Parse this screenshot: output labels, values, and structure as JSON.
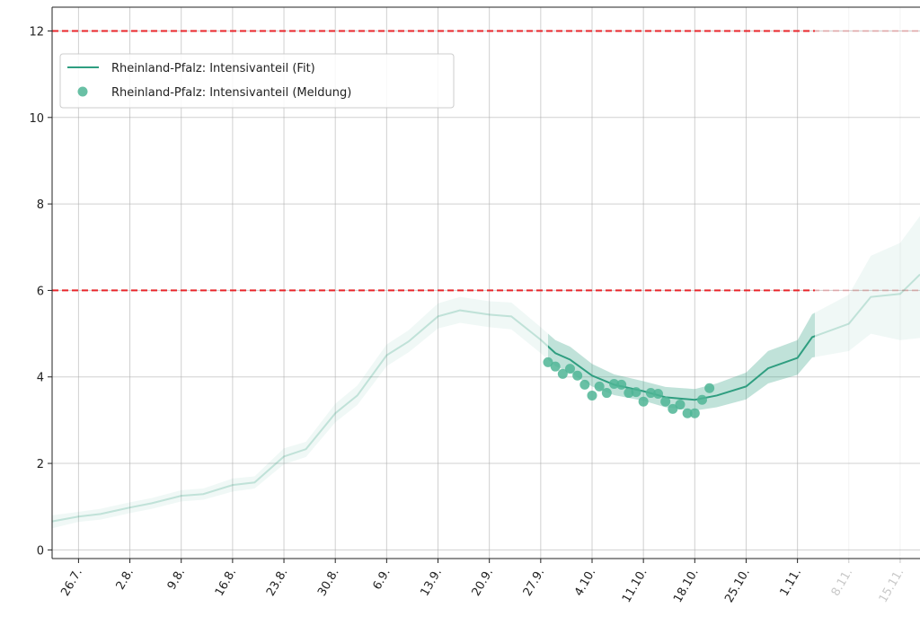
{
  "chart_data": {
    "type": "line",
    "x": [
      -3.6,
      0,
      3,
      7,
      10,
      14,
      17,
      21,
      24,
      28,
      31,
      35,
      38,
      42,
      45,
      49,
      52,
      56,
      59,
      63,
      65,
      67,
      70,
      73,
      77,
      80,
      84,
      87,
      91,
      94,
      98,
      100,
      105,
      108,
      112,
      114.7
    ],
    "series": [
      {
        "name": "Rheinland-Pfalz: Intensivanteil (Fit)",
        "color": "#2f9e80",
        "values": [
          0.66,
          0.77,
          0.83,
          0.98,
          1.08,
          1.25,
          1.29,
          1.5,
          1.56,
          2.16,
          2.33,
          3.16,
          3.57,
          4.5,
          4.82,
          5.4,
          5.54,
          5.44,
          5.4,
          4.86,
          4.55,
          4.4,
          4.03,
          3.82,
          3.67,
          3.53,
          3.47,
          3.57,
          3.78,
          4.2,
          4.44,
          4.92,
          5.23,
          5.85,
          5.92,
          6.37
        ],
        "lower": [
          0.5,
          0.65,
          0.7,
          0.85,
          0.95,
          1.12,
          1.16,
          1.35,
          1.42,
          1.98,
          2.15,
          2.95,
          3.35,
          4.25,
          4.57,
          5.12,
          5.25,
          5.15,
          5.1,
          4.55,
          4.25,
          4.1,
          3.78,
          3.58,
          3.45,
          3.3,
          3.22,
          3.3,
          3.48,
          3.85,
          4.05,
          4.45,
          4.6,
          5.0,
          4.85,
          4.9
        ],
        "upper": [
          0.8,
          0.88,
          0.95,
          1.1,
          1.2,
          1.38,
          1.42,
          1.65,
          1.7,
          2.35,
          2.5,
          3.38,
          3.8,
          4.75,
          5.08,
          5.7,
          5.85,
          5.75,
          5.72,
          5.15,
          4.85,
          4.7,
          4.3,
          4.06,
          3.9,
          3.77,
          3.72,
          3.85,
          4.1,
          4.6,
          4.85,
          5.45,
          5.9,
          6.8,
          7.1,
          7.72
        ]
      },
      {
        "name": "Rheinland-Pfalz: Intensivanteil (Meldung)",
        "color": "#4fb595",
        "x": [
          64,
          65,
          66,
          67,
          68,
          69,
          70,
          71,
          72,
          73,
          74,
          75,
          76,
          77,
          78,
          79,
          80,
          81,
          82,
          83,
          84,
          85,
          86
        ],
        "values": [
          4.34,
          4.24,
          4.07,
          4.19,
          4.03,
          3.82,
          3.57,
          3.78,
          3.63,
          3.84,
          3.82,
          3.63,
          3.65,
          3.43,
          3.63,
          3.61,
          3.43,
          3.26,
          3.36,
          3.16,
          3.16,
          3.47,
          3.74
        ]
      }
    ],
    "hlines": [
      6,
      12
    ],
    "hline_color": "#e8262b",
    "xlim": [
      -3.6,
      114.7
    ],
    "ylim": [
      -0.2,
      12.55
    ],
    "xticks": [
      {
        "value": 0,
        "label": "26.7."
      },
      {
        "value": 7,
        "label": "2.8."
      },
      {
        "value": 14,
        "label": "9.8."
      },
      {
        "value": 21,
        "label": "16.8."
      },
      {
        "value": 28,
        "label": "23.8."
      },
      {
        "value": 35,
        "label": "30.8."
      },
      {
        "value": 42,
        "label": "6.9."
      },
      {
        "value": 49,
        "label": "13.9."
      },
      {
        "value": 56,
        "label": "20.9."
      },
      {
        "value": 63,
        "label": "27.9."
      },
      {
        "value": 70,
        "label": "4.10."
      },
      {
        "value": 77,
        "label": "11.10."
      },
      {
        "value": 84,
        "label": "18.10."
      },
      {
        "value": 91,
        "label": "25.10."
      },
      {
        "value": 98,
        "label": "1.11."
      },
      {
        "value": 105,
        "label": "8.11."
      },
      {
        "value": 112,
        "label": "15.11."
      }
    ],
    "yticks": [
      0,
      2,
      4,
      6,
      8,
      10,
      12
    ],
    "grid": true,
    "legend": "upper left"
  }
}
